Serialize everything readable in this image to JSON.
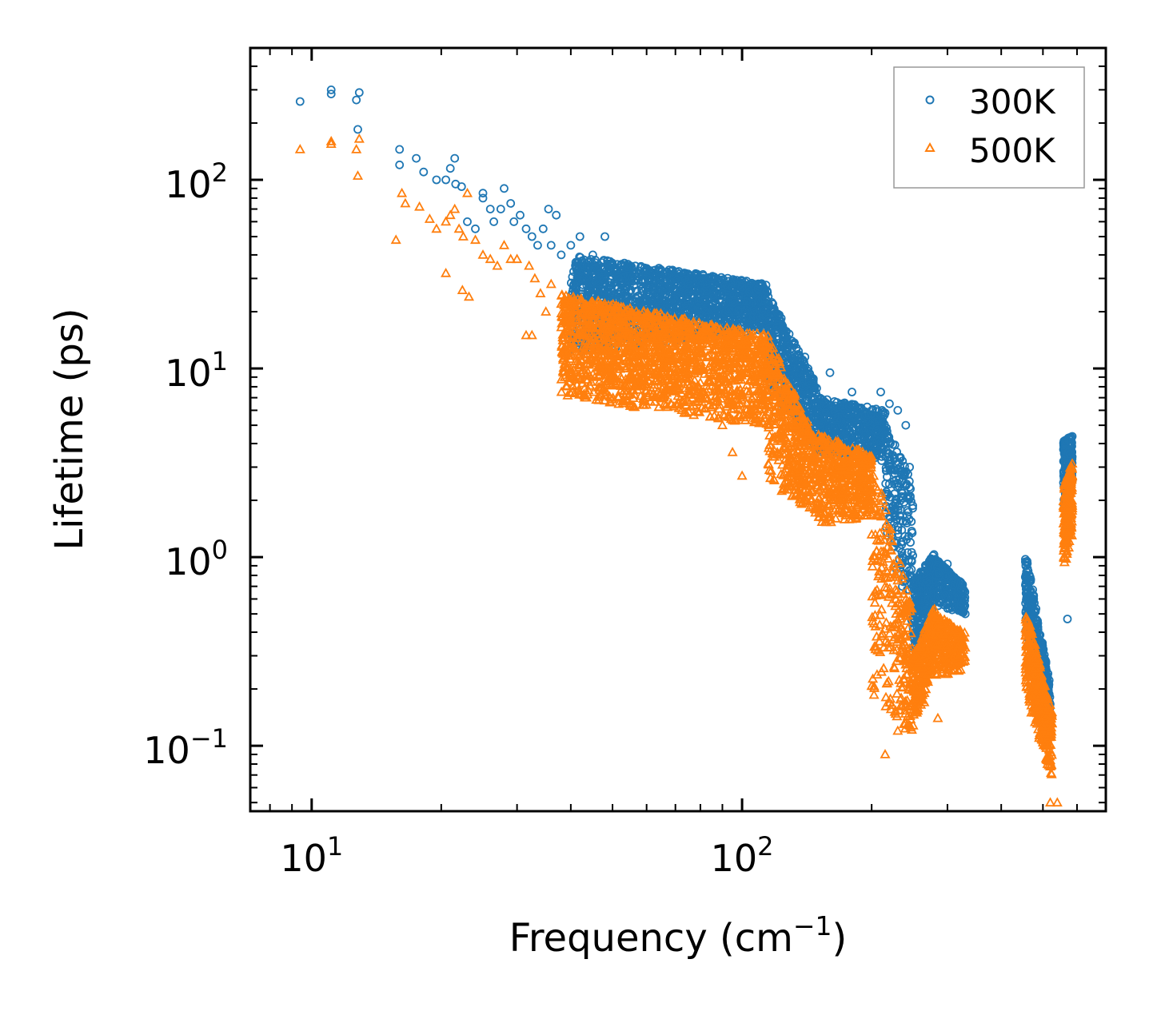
{
  "chart_data": {
    "type": "scatter",
    "title": "",
    "xlabel": "Frequency (cm",
    "xlabel_sup": "−1",
    "xlabel_end": ")",
    "ylabel": "Lifetime (ps)",
    "xscale": "log",
    "yscale": "log",
    "xlim": [
      7.2,
      700
    ],
    "ylim": [
      0.045,
      500
    ],
    "x_ticks": [
      {
        "value": 10,
        "base": "10",
        "exp": "1"
      },
      {
        "value": 100,
        "base": "10",
        "exp": "2"
      }
    ],
    "y_ticks": [
      {
        "value": 0.1,
        "base": "10",
        "exp": "−1"
      },
      {
        "value": 1,
        "base": "10",
        "exp": "0"
      },
      {
        "value": 10,
        "base": "10",
        "exp": "1"
      },
      {
        "value": 100,
        "base": "10",
        "exp": "2"
      }
    ],
    "legend_position": "top-right",
    "series": [
      {
        "name": "300K",
        "marker": "circle",
        "color": "#1f77b4",
        "points": [
          [
            9.4,
            260
          ],
          [
            11.1,
            300
          ],
          [
            11.1,
            285
          ],
          [
            12.7,
            265
          ],
          [
            12.9,
            290
          ],
          [
            12.8,
            185
          ],
          [
            16.0,
            145
          ],
          [
            16.0,
            120
          ],
          [
            17.5,
            130
          ],
          [
            18.2,
            110
          ],
          [
            19.5,
            100
          ],
          [
            20.5,
            100
          ],
          [
            21.0,
            115
          ],
          [
            21.5,
            130
          ],
          [
            21.6,
            95
          ],
          [
            22.3,
            92
          ],
          [
            23.0,
            60
          ],
          [
            24.0,
            55
          ],
          [
            25.0,
            85
          ],
          [
            25.0,
            80
          ],
          [
            26.0,
            70
          ],
          [
            26.5,
            60
          ],
          [
            27.5,
            70
          ],
          [
            28.0,
            90
          ],
          [
            29.0,
            75
          ],
          [
            29.5,
            60
          ],
          [
            30.5,
            65
          ],
          [
            31.5,
            55
          ],
          [
            32.5,
            50
          ],
          [
            33.5,
            45
          ],
          [
            34.5,
            55
          ],
          [
            35.5,
            70
          ],
          [
            36.0,
            45
          ],
          [
            37.0,
            65
          ],
          [
            38.0,
            40
          ],
          [
            40.0,
            45
          ],
          [
            42.0,
            50
          ],
          [
            45.0,
            40
          ],
          [
            48.0,
            50
          ],
          [
            50.0,
            35
          ],
          [
            55.0,
            35
          ],
          [
            60.0,
            33
          ],
          [
            70.0,
            30
          ],
          [
            75.0,
            28
          ],
          [
            80.0,
            29
          ],
          [
            85.0,
            30
          ],
          [
            90.0,
            25
          ],
          [
            95.0,
            27
          ],
          [
            100.0,
            27
          ],
          [
            110.0,
            28
          ],
          [
            115.0,
            24
          ],
          [
            140.0,
            11.5
          ],
          [
            160.0,
            9.5
          ],
          [
            180.0,
            7.5
          ],
          [
            210.0,
            7.5
          ],
          [
            220.0,
            6.5
          ],
          [
            230.0,
            6.0
          ],
          [
            240.0,
            5.0
          ],
          [
            245.0,
            3.0
          ],
          [
            246.0,
            2.1
          ],
          [
            300.0,
            0.92
          ],
          [
            330.0,
            0.5
          ],
          [
            500.0,
            0.2
          ],
          [
            570.0,
            0.47
          ]
        ],
        "bands": [
          {
            "x_range": [
              40,
              115
            ],
            "y_start": [
              40,
              12
            ],
            "y_end": [
              28,
              16
            ],
            "count": 1600
          },
          {
            "x_range": [
              115,
              150
            ],
            "y_start": [
              25,
              8
            ],
            "y_end": [
              8,
              3.5
            ],
            "count": 450
          },
          {
            "x_range": [
              150,
              215
            ],
            "y_start": [
              7,
              3.5
            ],
            "y_end": [
              6,
              3.2
            ],
            "count": 500
          },
          {
            "x_range": [
              215,
              250
            ],
            "y_start": [
              5,
              1.5
            ],
            "y_end": [
              2.5,
              0.35
            ],
            "count": 200
          },
          {
            "x_range": [
              250,
              280
            ],
            "y_start": [
              0.75,
              0.28
            ],
            "y_end": [
              1.05,
              0.55
            ],
            "count": 260
          },
          {
            "x_range": [
              280,
              330
            ],
            "y_start": [
              1.0,
              0.55
            ],
            "y_end": [
              0.7,
              0.5
            ],
            "count": 220
          },
          {
            "x_range": [
              455,
              520
            ],
            "y_start": [
              1.1,
              0.4
            ],
            "y_end": [
              0.21,
              0.12
            ],
            "count": 420
          },
          {
            "x_range": [
              558,
              585
            ],
            "y_start": [
              4.2,
              1.8
            ],
            "y_end": [
              4.4,
              2.2
            ],
            "count": 200
          }
        ]
      },
      {
        "name": "500K",
        "marker": "triangle",
        "color": "#ff7f0e",
        "points": [
          [
            9.4,
            145
          ],
          [
            11.1,
            160
          ],
          [
            11.1,
            155
          ],
          [
            12.7,
            145
          ],
          [
            12.9,
            165
          ],
          [
            12.8,
            105
          ],
          [
            15.7,
            48
          ],
          [
            16.2,
            85
          ],
          [
            16.5,
            75
          ],
          [
            17.8,
            72
          ],
          [
            18.8,
            62
          ],
          [
            19.5,
            55
          ],
          [
            20.5,
            60
          ],
          [
            21.0,
            65
          ],
          [
            21.5,
            70
          ],
          [
            22.0,
            55
          ],
          [
            22.5,
            50
          ],
          [
            23.0,
            85
          ],
          [
            24.0,
            48
          ],
          [
            25.0,
            40
          ],
          [
            26.0,
            38
          ],
          [
            27.0,
            35
          ],
          [
            28.0,
            45
          ],
          [
            29.0,
            38
          ],
          [
            30.0,
            38
          ],
          [
            32.0,
            35
          ],
          [
            33.0,
            30
          ],
          [
            34.0,
            25
          ],
          [
            35.0,
            20
          ],
          [
            36.0,
            28
          ],
          [
            38.0,
            22
          ],
          [
            40.0,
            18
          ],
          [
            42.0,
            15
          ],
          [
            45.0,
            12
          ],
          [
            50.0,
            10
          ],
          [
            55.0,
            9
          ],
          [
            60.0,
            8
          ],
          [
            65.0,
            9
          ],
          [
            70.0,
            8
          ],
          [
            80.0,
            7
          ],
          [
            90.0,
            5
          ],
          [
            95.0,
            3.6
          ],
          [
            100.0,
            2.7
          ],
          [
            20.5,
            32
          ],
          [
            22.4,
            26
          ],
          [
            23.2,
            24
          ],
          [
            31.5,
            15
          ],
          [
            32.5,
            15
          ],
          [
            215.0,
            0.09
          ],
          [
            230.0,
            0.12
          ],
          [
            265.0,
            0.17
          ],
          [
            270.0,
            0.24
          ],
          [
            285.0,
            0.14
          ],
          [
            320.0,
            0.3
          ],
          [
            470.0,
            0.15
          ],
          [
            490.0,
            0.11
          ],
          [
            520.0,
            0.05
          ],
          [
            540.0,
            0.05
          ]
        ],
        "bands": [
          {
            "x_range": [
              38,
              115
            ],
            "y_start": [
              25,
              7
            ],
            "y_end": [
              15,
              5
            ],
            "count": 1700
          },
          {
            "x_range": [
              115,
              150
            ],
            "y_start": [
              15,
              2.5
            ],
            "y_end": [
              4,
              1.6
            ],
            "count": 450
          },
          {
            "x_range": [
              150,
              200
            ],
            "y_start": [
              4.5,
              1.5
            ],
            "y_end": [
              3.5,
              1.6
            ],
            "count": 450
          },
          {
            "x_range": [
              200,
              250
            ],
            "y_start": [
              3.5,
              0.18
            ],
            "y_end": [
              0.5,
              0.11
            ],
            "count": 280
          },
          {
            "x_range": [
              250,
              280
            ],
            "y_start": [
              0.3,
              0.13
            ],
            "y_end": [
              0.55,
              0.25
            ],
            "count": 260
          },
          {
            "x_range": [
              280,
              330
            ],
            "y_start": [
              0.5,
              0.23
            ],
            "y_end": [
              0.4,
              0.25
            ],
            "count": 240
          },
          {
            "x_range": [
              455,
              525
            ],
            "y_start": [
              0.55,
              0.2
            ],
            "y_end": [
              0.15,
              0.065
            ],
            "count": 420
          },
          {
            "x_range": [
              558,
              585
            ],
            "y_start": [
              2.4,
              0.9
            ],
            "y_end": [
              3.2,
              1.2
            ],
            "count": 200
          }
        ]
      }
    ]
  }
}
